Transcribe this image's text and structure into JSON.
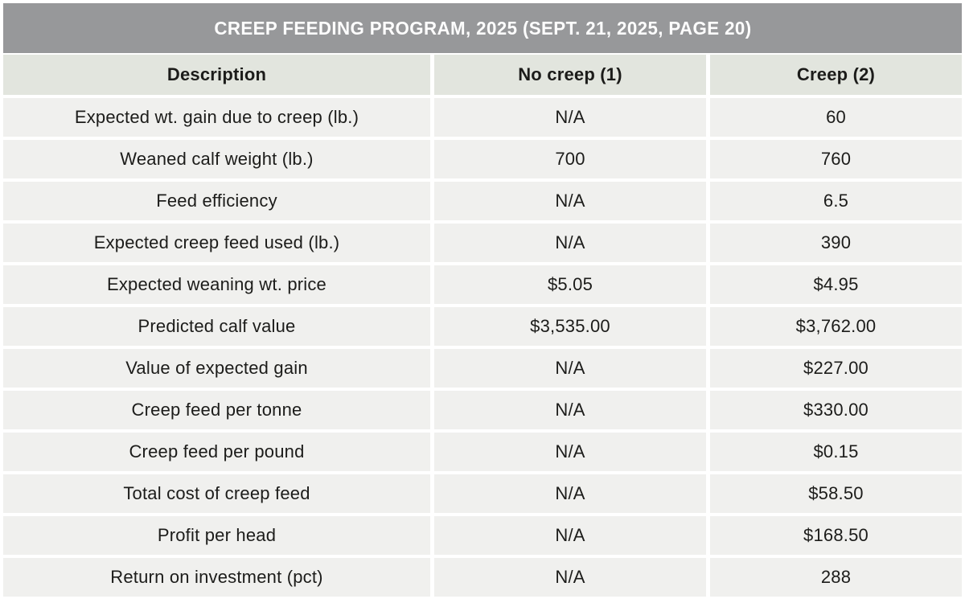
{
  "title": "CREEP FEEDING PROGRAM, 2025 (SEPT. 21, 2025, PAGE 20)",
  "colors": {
    "title_bar_bg": "#97989a",
    "title_text": "#fdfdfd",
    "header_row_bg": "#e2e5de",
    "data_row_bg": "#f0f0ee",
    "divider": "#ffffff",
    "body_text": "#1c1c1a"
  },
  "chart_data": {
    "type": "table",
    "title": "CREEP FEEDING PROGRAM, 2025 (SEPT. 21, 2025, PAGE 20)",
    "columns": [
      "Description",
      "No creep (1)",
      "Creep (2)"
    ],
    "rows": [
      {
        "label": "Expected wt. gain due to creep (lb.)",
        "no_creep": "N/A",
        "creep": "60"
      },
      {
        "label": "Weaned calf weight (lb.)",
        "no_creep": "700",
        "creep": "760"
      },
      {
        "label": "Feed efficiency",
        "no_creep": "N/A",
        "creep": "6.5"
      },
      {
        "label": "Expected creep feed used (lb.)",
        "no_creep": "N/A",
        "creep": "390"
      },
      {
        "label": "Expected weaning wt. price",
        "no_creep": "$5.05",
        "creep": "$4.95"
      },
      {
        "label": "Predicted calf value",
        "no_creep": "$3,535.00",
        "creep": "$3,762.00"
      },
      {
        "label": "Value of expected gain",
        "no_creep": "N/A",
        "creep": "$227.00"
      },
      {
        "label": "Creep feed per tonne",
        "no_creep": "N/A",
        "creep": "$330.00"
      },
      {
        "label": "Creep feed per pound",
        "no_creep": "N/A",
        "creep": "$0.15"
      },
      {
        "label": "Total cost of creep feed",
        "no_creep": "N/A",
        "creep": "$58.50"
      },
      {
        "label": "Profit per head",
        "no_creep": "N/A",
        "creep": "$168.50"
      },
      {
        "label": "Return on investment (pct)",
        "no_creep": "N/A",
        "creep": "288"
      }
    ]
  }
}
